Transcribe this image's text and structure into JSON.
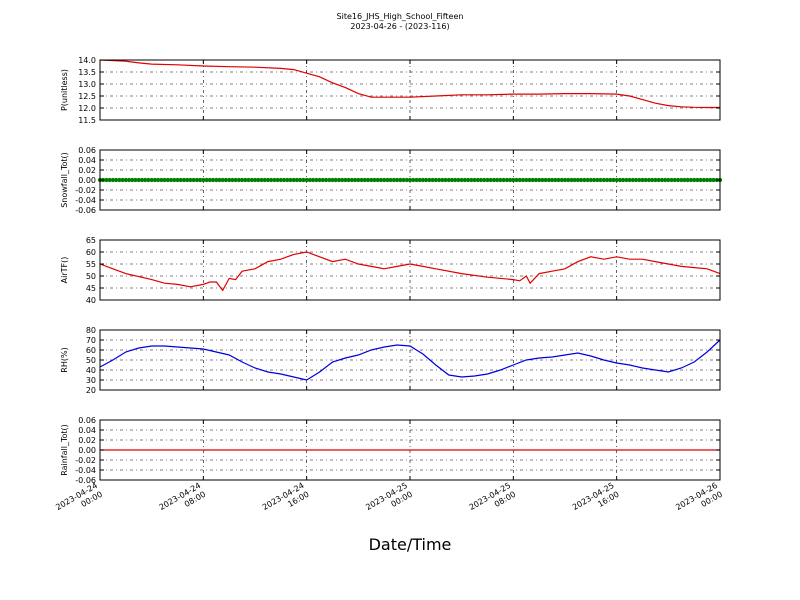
{
  "title": "Site16_JHS_High_School_Fifteen",
  "subtitle": "2023-04-26 - (2023-116)",
  "xlabel": "Date/Time",
  "x_ticks": [
    "2023-04-24\n00:00",
    "2023-04-24\n08:00",
    "2023-04-24\n16:00",
    "2023-04-25\n00:00",
    "2023-04-25\n08:00",
    "2023-04-25\n16:00",
    "2023-04-26\n00:00"
  ],
  "chart_data": [
    {
      "type": "line",
      "ylabel": "P(unitless)",
      "x_unit": "hours since 2023-04-24 00:00",
      "xlim": [
        0,
        48
      ],
      "ylim": [
        11.5,
        14.0
      ],
      "yticks": [
        "11.5",
        "12.0",
        "12.5",
        "13.0",
        "13.5",
        "14.0"
      ],
      "grid": true,
      "series": [
        {
          "color": "#e00000",
          "points": [
            [
              0,
              14.0
            ],
            [
              2,
              13.95
            ],
            [
              3,
              13.88
            ],
            [
              4,
              13.83
            ],
            [
              6,
              13.8
            ],
            [
              8,
              13.75
            ],
            [
              10,
              13.72
            ],
            [
              12,
              13.7
            ],
            [
              14,
              13.65
            ],
            [
              15,
              13.6
            ],
            [
              16,
              13.45
            ],
            [
              17,
              13.3
            ],
            [
              18,
              13.05
            ],
            [
              19,
              12.85
            ],
            [
              20,
              12.6
            ],
            [
              21,
              12.45
            ],
            [
              22,
              12.45
            ],
            [
              24,
              12.45
            ],
            [
              26,
              12.5
            ],
            [
              28,
              12.55
            ],
            [
              30,
              12.55
            ],
            [
              32,
              12.58
            ],
            [
              34,
              12.58
            ],
            [
              36,
              12.6
            ],
            [
              38,
              12.6
            ],
            [
              40,
              12.58
            ],
            [
              41,
              12.5
            ],
            [
              42,
              12.35
            ],
            [
              43,
              12.2
            ],
            [
              44,
              12.1
            ],
            [
              45,
              12.05
            ],
            [
              46,
              12.03
            ],
            [
              47,
              12.02
            ],
            [
              48,
              12.02
            ]
          ]
        }
      ]
    },
    {
      "type": "scatter",
      "ylabel": "Snowfall_Tot()",
      "x_unit": "hours since 2023-04-24 00:00",
      "xlim": [
        0,
        48
      ],
      "ylim": [
        -0.06,
        0.06
      ],
      "yticks": [
        "-0.06",
        "-0.04",
        "-0.02",
        "0.00",
        "0.02",
        "0.04",
        "0.06"
      ],
      "grid": true,
      "series": [
        {
          "color": "#008000",
          "constant": 0.0
        }
      ]
    },
    {
      "type": "line",
      "ylabel": "AirTF()",
      "x_unit": "hours since 2023-04-24 00:00",
      "xlim": [
        0,
        48
      ],
      "ylim": [
        40,
        65
      ],
      "yticks": [
        "40",
        "45",
        "50",
        "55",
        "60",
        "65"
      ],
      "grid": true,
      "series": [
        {
          "color": "#e00000",
          "points": [
            [
              0,
              55
            ],
            [
              1,
              53
            ],
            [
              2,
              51
            ],
            [
              4,
              48.5
            ],
            [
              5,
              47
            ],
            [
              6,
              46.5
            ],
            [
              7,
              45.5
            ],
            [
              8,
              46.5
            ],
            [
              8.5,
              47.5
            ],
            [
              9,
              47.5
            ],
            [
              9.5,
              44
            ],
            [
              10,
              49
            ],
            [
              10.5,
              48.5
            ],
            [
              11,
              52
            ],
            [
              12,
              53
            ],
            [
              13,
              56
            ],
            [
              14,
              57
            ],
            [
              15,
              59
            ],
            [
              16,
              60
            ],
            [
              17,
              58
            ],
            [
              18,
              56
            ],
            [
              19,
              57
            ],
            [
              20,
              55
            ],
            [
              21,
              54
            ],
            [
              22,
              53
            ],
            [
              23,
              54
            ],
            [
              24,
              55
            ],
            [
              25,
              54
            ],
            [
              26,
              53
            ],
            [
              28,
              51
            ],
            [
              30,
              49.5
            ],
            [
              32,
              48.5
            ],
            [
              32.5,
              48
            ],
            [
              33,
              50
            ],
            [
              33.3,
              47
            ],
            [
              34,
              51
            ],
            [
              35,
              52
            ],
            [
              36,
              53
            ],
            [
              37,
              56
            ],
            [
              38,
              58
            ],
            [
              39,
              57
            ],
            [
              40,
              58
            ],
            [
              41,
              57
            ],
            [
              42,
              57
            ],
            [
              43,
              56
            ],
            [
              44,
              55
            ],
            [
              45,
              54
            ],
            [
              46,
              53.5
            ],
            [
              47,
              53
            ],
            [
              48,
              51
            ]
          ]
        }
      ]
    },
    {
      "type": "line",
      "ylabel": "RH(%)",
      "x_unit": "hours since 2023-04-24 00:00",
      "xlim": [
        0,
        48
      ],
      "ylim": [
        20,
        80
      ],
      "yticks": [
        "20",
        "30",
        "40",
        "50",
        "60",
        "70",
        "80"
      ],
      "grid": true,
      "series": [
        {
          "color": "#0000e0",
          "points": [
            [
              0,
              43
            ],
            [
              1,
              50
            ],
            [
              2,
              58
            ],
            [
              3,
              62
            ],
            [
              4,
              64
            ],
            [
              5,
              64
            ],
            [
              6,
              63
            ],
            [
              7,
              62
            ],
            [
              8,
              61
            ],
            [
              9,
              58
            ],
            [
              10,
              55
            ],
            [
              11,
              48
            ],
            [
              12,
              42
            ],
            [
              13,
              38
            ],
            [
              14,
              36
            ],
            [
              15,
              33
            ],
            [
              16,
              30
            ],
            [
              17,
              38
            ],
            [
              18,
              48
            ],
            [
              19,
              52
            ],
            [
              20,
              55
            ],
            [
              21,
              60
            ],
            [
              22,
              63
            ],
            [
              23,
              65
            ],
            [
              24,
              64
            ],
            [
              25,
              56
            ],
            [
              26,
              45
            ],
            [
              27,
              35
            ],
            [
              28,
              33
            ],
            [
              29,
              34
            ],
            [
              30,
              36
            ],
            [
              31,
              40
            ],
            [
              32,
              45
            ],
            [
              33,
              50
            ],
            [
              34,
              52
            ],
            [
              35,
              53
            ],
            [
              36,
              55
            ],
            [
              37,
              57
            ],
            [
              38,
              54
            ],
            [
              39,
              50
            ],
            [
              40,
              47
            ],
            [
              41,
              45
            ],
            [
              42,
              42
            ],
            [
              43,
              40
            ],
            [
              44,
              38
            ],
            [
              45,
              42
            ],
            [
              46,
              48
            ],
            [
              47,
              58
            ],
            [
              48,
              70
            ]
          ]
        }
      ]
    },
    {
      "type": "line",
      "ylabel": "Rainfall_Tot()",
      "x_unit": "hours since 2023-04-24 00:00",
      "xlim": [
        0,
        48
      ],
      "ylim": [
        -0.06,
        0.06
      ],
      "yticks": [
        "-0.06",
        "-0.04",
        "-0.02",
        "0.00",
        "0.02",
        "0.04",
        "0.06"
      ],
      "grid": true,
      "series": [
        {
          "color": "#e00000",
          "constant": 0.0
        }
      ]
    }
  ]
}
